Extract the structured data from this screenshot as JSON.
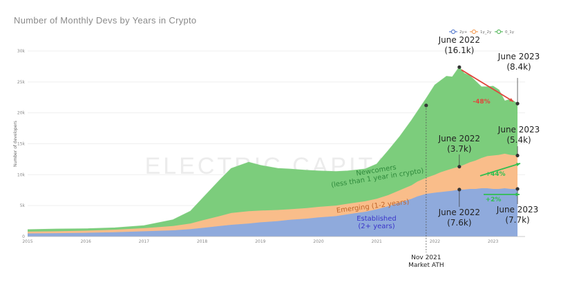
{
  "chart_data": {
    "type": "area",
    "stacked": true,
    "title": "Number of Monthly Devs by Years in Crypto",
    "ylabel": "Number of developers",
    "xlabel": "",
    "ylim": [
      0,
      30000
    ],
    "xlim": [
      2015,
      2023.55
    ],
    "yticks": [
      0,
      5000,
      10000,
      15000,
      20000,
      25000,
      30000
    ],
    "ytick_labels": [
      "0",
      "5k",
      "10k",
      "15k",
      "20k",
      "25k",
      "30k"
    ],
    "xticks": [
      2015,
      2016,
      2017,
      2018,
      2019,
      2020,
      2021,
      2022,
      2023
    ],
    "xtick_labels": [
      "2015",
      "2016",
      "2017",
      "2018",
      "2019",
      "2020",
      "2021",
      "2022",
      "2023"
    ],
    "legend": {
      "position": "top-right",
      "entries": [
        {
          "key": "2y+",
          "label": "2y+",
          "color": "#5b7fd0"
        },
        {
          "key": "1y_2y",
          "label": "1y_2y",
          "color": "#f5a25d"
        },
        {
          "key": "0_1y",
          "label": "0_1y",
          "color": "#5dbb63"
        }
      ]
    },
    "watermark": "ELECTRIC CAPITAL",
    "x": [
      2015.0,
      2015.5,
      2016.0,
      2016.5,
      2017.0,
      2017.5,
      2017.8,
      2018.0,
      2018.3,
      2018.5,
      2018.8,
      2019.0,
      2019.3,
      2019.5,
      2019.8,
      2020.0,
      2020.3,
      2020.5,
      2020.8,
      2021.0,
      2021.2,
      2021.4,
      2021.6,
      2021.7,
      2021.85,
      2022.0,
      2022.1,
      2022.2,
      2022.3,
      2022.42,
      2022.5,
      2022.6,
      2022.7,
      2022.8,
      2022.9,
      2023.0,
      2023.1,
      2023.2,
      2023.3,
      2023.42
    ],
    "series": [
      {
        "name": "2y+",
        "key": "2y+",
        "label": "Established\n(2+ years)",
        "color": "#8faadc",
        "values": [
          500,
          550,
          600,
          700,
          850,
          1000,
          1200,
          1400,
          1700,
          1900,
          2100,
          2300,
          2500,
          2700,
          2900,
          3100,
          3300,
          3600,
          4000,
          4400,
          4900,
          5500,
          6100,
          6500,
          6900,
          7100,
          7200,
          7300,
          7400,
          7600,
          7600,
          7700,
          7700,
          7800,
          7800,
          7700,
          7700,
          7800,
          7700,
          7700
        ]
      },
      {
        "name": "1y_2y",
        "key": "1y_2y",
        "label": "Emerging (1-2 years)",
        "color": "#f9bd8a",
        "values": [
          300,
          300,
          350,
          400,
          500,
          700,
          900,
          1200,
          1600,
          1900,
          2000,
          1900,
          1800,
          1700,
          1700,
          1700,
          1700,
          1700,
          1700,
          1700,
          1800,
          2000,
          2200,
          2400,
          2600,
          2900,
          3200,
          3400,
          3600,
          3700,
          4000,
          4300,
          4600,
          4900,
          5200,
          5400,
          5500,
          5600,
          5500,
          5400
        ]
      },
      {
        "name": "0_1y",
        "key": "0_1y",
        "label": "Newcomers\n(less than 1 year in crypto)",
        "color": "#7ccd7c",
        "values": [
          300,
          350,
          300,
          300,
          400,
          1000,
          2000,
          3500,
          5800,
          7200,
          7900,
          7300,
          6700,
          6500,
          6100,
          5800,
          5500,
          5300,
          5200,
          5600,
          7200,
          8700,
          10500,
          11300,
          12800,
          14500,
          14800,
          15200,
          14800,
          16100,
          14800,
          14000,
          12800,
          11500,
          11200,
          11200,
          10500,
          8500,
          9000,
          8400
        ]
      }
    ],
    "annotations": [
      {
        "id": "june2022-total",
        "lines": [
          "June 2022",
          "(16.1k)"
        ],
        "x": 2022.42,
        "y": 27400
      },
      {
        "id": "june2023-total",
        "lines": [
          "June 2023",
          "(8.4k)"
        ],
        "x": 2023.42,
        "y": 21500
      },
      {
        "id": "change-total",
        "text": "-48%",
        "color": "#e0463c"
      },
      {
        "id": "june2022-emerging",
        "lines": [
          "June 2022",
          "(3.7k)"
        ],
        "x": 2022.42,
        "y": 11300
      },
      {
        "id": "june2023-emerging",
        "lines": [
          "June 2023",
          "(5.4k)"
        ],
        "x": 2023.42,
        "y": 13100
      },
      {
        "id": "change-emerging",
        "text": "+44%",
        "color": "#2fbf4f"
      },
      {
        "id": "june2022-established",
        "lines": [
          "June 2022",
          "(7.6k)"
        ],
        "x": 2022.42,
        "y": 7600
      },
      {
        "id": "june2023-established",
        "lines": [
          "June 2023",
          "(7.7k)"
        ],
        "x": 2023.42,
        "y": 7700
      },
      {
        "id": "change-established",
        "text": "+2%",
        "color": "#2fbf4f"
      },
      {
        "id": "nov2021",
        "lines": [
          "Nov 2021",
          "Market ATH"
        ],
        "x": 2021.85,
        "y": 21200
      }
    ]
  }
}
